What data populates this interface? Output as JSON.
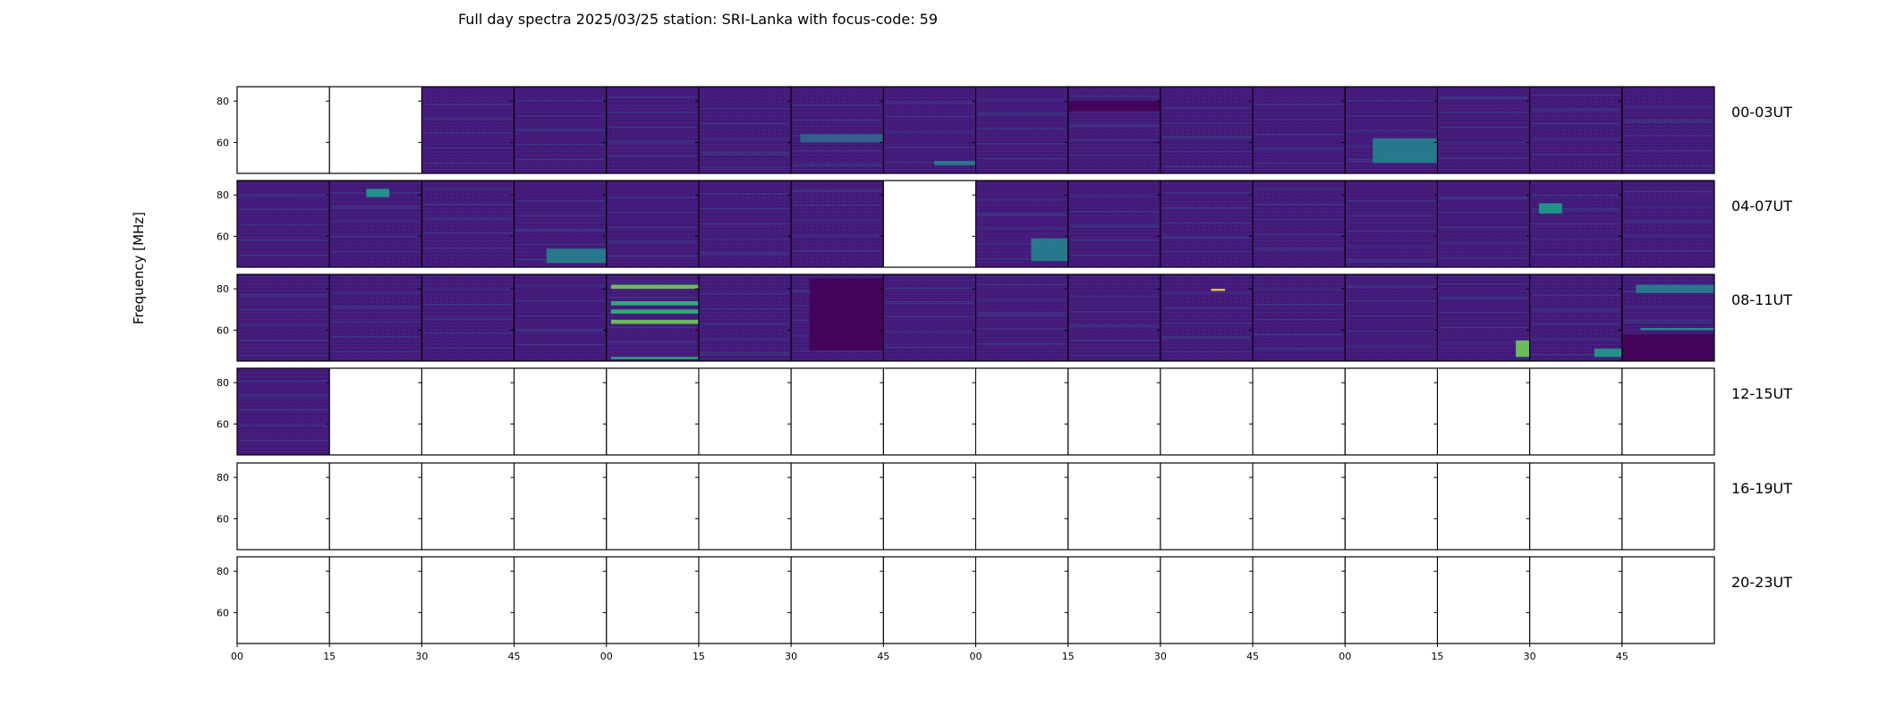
{
  "chart_data": {
    "type": "heatmap",
    "title": "Full day spectra 2025/03/25 station: SRI-Lanka with focus-code: 59",
    "ylabel": "Frequency [MHz]",
    "xlabel": "",
    "y_ticks": [
      "60",
      "80"
    ],
    "ylim": [
      45,
      87
    ],
    "x_tick_labels": [
      "00",
      "15",
      "30",
      "45",
      "00",
      "15",
      "30",
      "45",
      "00",
      "15",
      "30",
      "45",
      "00",
      "15",
      "30",
      "45"
    ],
    "rows": [
      {
        "label": "00-03UT",
        "panels": [
          0,
          0,
          1,
          1,
          1,
          1,
          1,
          1,
          1,
          1,
          1,
          1,
          1,
          1,
          1,
          1
        ]
      },
      {
        "label": "04-07UT",
        "panels": [
          1,
          1,
          1,
          1,
          1,
          1,
          1,
          0,
          1,
          1,
          1,
          1,
          1,
          1,
          1,
          1
        ]
      },
      {
        "label": "08-11UT",
        "panels": [
          1,
          1,
          1,
          1,
          1,
          1,
          1,
          1,
          1,
          1,
          1,
          1,
          1,
          1,
          1,
          1
        ]
      },
      {
        "label": "12-15UT",
        "panels": [
          1,
          0,
          0,
          0,
          0,
          0,
          0,
          0,
          0,
          0,
          0,
          0,
          0,
          0,
          0,
          0
        ]
      },
      {
        "label": "16-19UT",
        "panels": [
          0,
          0,
          0,
          0,
          0,
          0,
          0,
          0,
          0,
          0,
          0,
          0,
          0,
          0,
          0,
          0
        ]
      },
      {
        "label": "20-23UT",
        "panels": [
          0,
          0,
          0,
          0,
          0,
          0,
          0,
          0,
          0,
          0,
          0,
          0,
          0,
          0,
          0,
          0
        ]
      }
    ],
    "features": [
      {
        "row": 0,
        "panel": 7,
        "f": [
          49,
          51
        ],
        "t": [
          0.55,
          1.0
        ],
        "level": 0.45
      },
      {
        "row": 0,
        "panel": 12,
        "f": [
          50,
          62
        ],
        "t": [
          0.3,
          1.0
        ],
        "level": 0.45
      },
      {
        "row": 0,
        "panel": 6,
        "f": [
          60,
          64
        ],
        "t": [
          0.1,
          1.0
        ],
        "level": 0.35
      },
      {
        "row": 0,
        "panel": 9,
        "f": [
          75,
          80
        ],
        "t": [
          0.0,
          1.0
        ],
        "level": 0.03
      },
      {
        "row": 1,
        "panel": 1,
        "f": [
          79,
          83
        ],
        "t": [
          0.4,
          0.65
        ],
        "level": 0.55
      },
      {
        "row": 1,
        "panel": 3,
        "f": [
          47,
          54
        ],
        "t": [
          0.35,
          1.0
        ],
        "level": 0.4
      },
      {
        "row": 1,
        "panel": 8,
        "f": [
          48,
          59
        ],
        "t": [
          0.6,
          1.0
        ],
        "level": 0.45
      },
      {
        "row": 1,
        "panel": 14,
        "f": [
          71,
          76
        ],
        "t": [
          0.1,
          0.35
        ],
        "level": 0.6
      },
      {
        "row": 2,
        "panel": 4,
        "f": [
          80,
          82
        ],
        "t": [
          0.05,
          1.0
        ],
        "level": 0.8
      },
      {
        "row": 2,
        "panel": 4,
        "f": [
          72,
          74
        ],
        "t": [
          0.05,
          1.0
        ],
        "level": 0.7
      },
      {
        "row": 2,
        "panel": 4,
        "f": [
          68,
          70
        ],
        "t": [
          0.05,
          1.0
        ],
        "level": 0.65
      },
      {
        "row": 2,
        "panel": 4,
        "f": [
          63,
          65
        ],
        "t": [
          0.05,
          1.0
        ],
        "level": 0.75
      },
      {
        "row": 2,
        "panel": 4,
        "f": [
          46,
          47
        ],
        "t": [
          0.05,
          1.0
        ],
        "level": 0.7
      },
      {
        "row": 2,
        "panel": 6,
        "f": [
          50,
          85
        ],
        "t": [
          0.2,
          1.0
        ],
        "level": 0.02
      },
      {
        "row": 2,
        "panel": 10,
        "f": [
          79,
          80
        ],
        "t": [
          0.55,
          0.7
        ],
        "level": 1.0
      },
      {
        "row": 2,
        "panel": 13,
        "f": [
          47,
          55
        ],
        "t": [
          0.85,
          1.0
        ],
        "level": 0.8
      },
      {
        "row": 2,
        "panel": 14,
        "f": [
          47,
          51
        ],
        "t": [
          0.7,
          1.0
        ],
        "level": 0.6
      },
      {
        "row": 2,
        "panel": 15,
        "f": [
          78,
          82
        ],
        "t": [
          0.15,
          1.0
        ],
        "level": 0.45
      },
      {
        "row": 2,
        "panel": 15,
        "f": [
          60,
          61
        ],
        "t": [
          0.2,
          1.0
        ],
        "level": 0.55
      },
      {
        "row": 2,
        "panel": 15,
        "f": [
          45,
          58
        ],
        "t": [
          0.0,
          1.0
        ],
        "level": 0.03
      }
    ]
  }
}
